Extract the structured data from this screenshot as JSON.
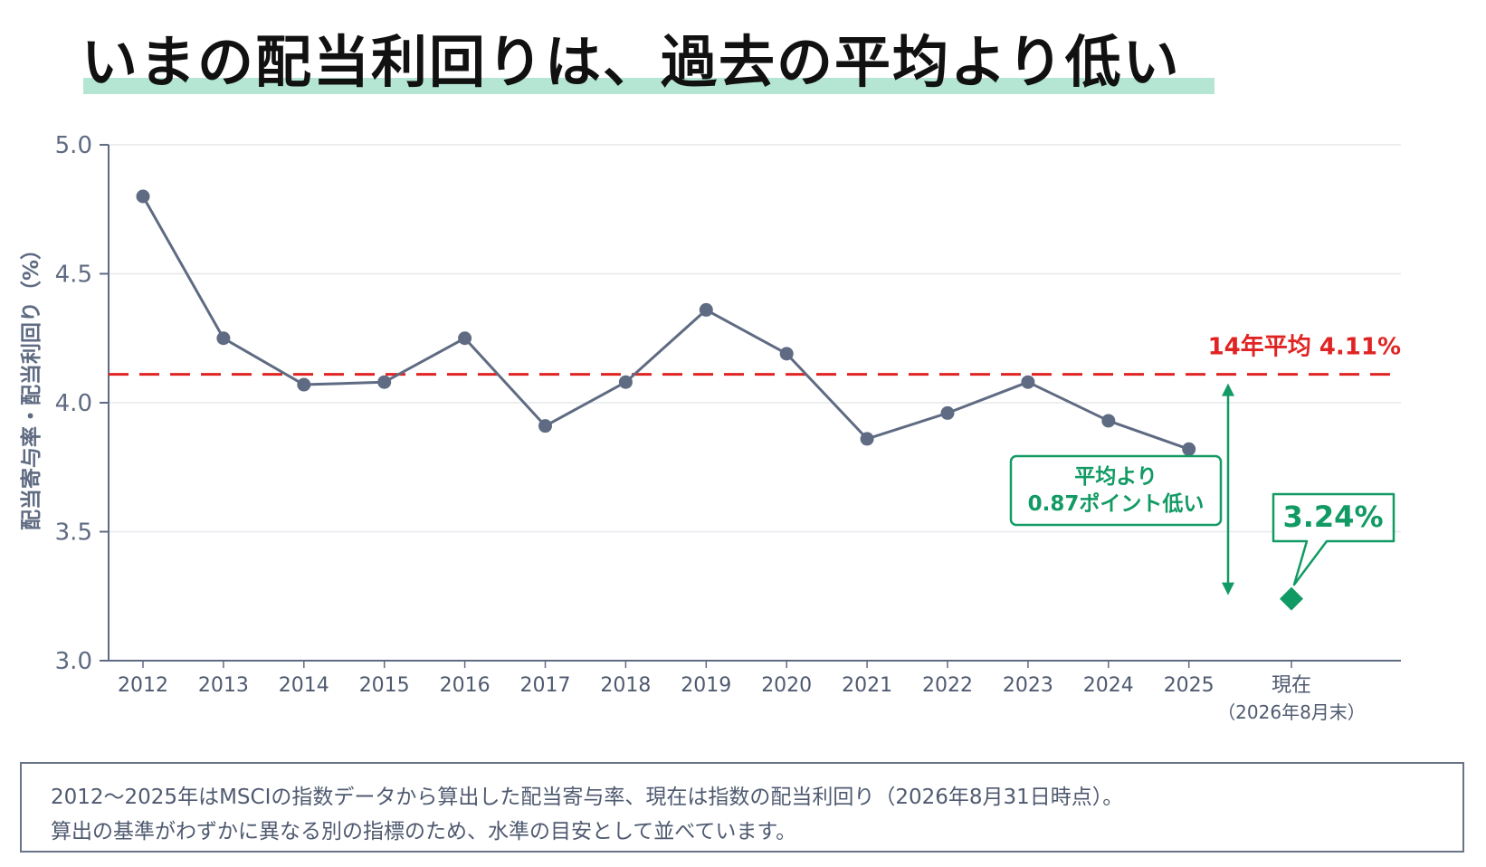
{
  "title": "いまの配当利回りは、過去の平均より低い",
  "chart_data": {
    "type": "line",
    "ylabel": "配当寄与率・配当利回り（%）",
    "ylim": [
      3.0,
      5.0
    ],
    "yticks": [
      "3.0",
      "3.5",
      "4.0",
      "4.5",
      "5.0"
    ],
    "categories": [
      "2012",
      "2013",
      "2014",
      "2015",
      "2016",
      "2017",
      "2018",
      "2019",
      "2020",
      "2021",
      "2022",
      "2023",
      "2024",
      "2025"
    ],
    "values": [
      4.8,
      4.25,
      4.07,
      4.08,
      4.25,
      3.91,
      4.08,
      4.36,
      4.19,
      3.86,
      3.96,
      4.08,
      3.93,
      3.82
    ],
    "line_color": "#5f6b82",
    "grid": "horizontal",
    "average": {
      "value": 4.11,
      "label": "14年平均 4.11%",
      "color": "#e02424"
    },
    "current": {
      "value": 3.24,
      "label_line1": "現在",
      "label_line2": "（2026年8月末）",
      "callout": "3.24%",
      "color": "#129a64"
    },
    "gap_annotation": {
      "line1": "平均より",
      "line2": "0.87ポイント低い",
      "color": "#129a64"
    }
  },
  "note": {
    "line1": "2012〜2025年はMSCIの指数データから算出した配当寄与率、現在は指数の配当利回り（2026年8月31日時点）。",
    "line2": "算出の基準がわずかに異なる別の指標のため、水準の目安として並べています。"
  }
}
